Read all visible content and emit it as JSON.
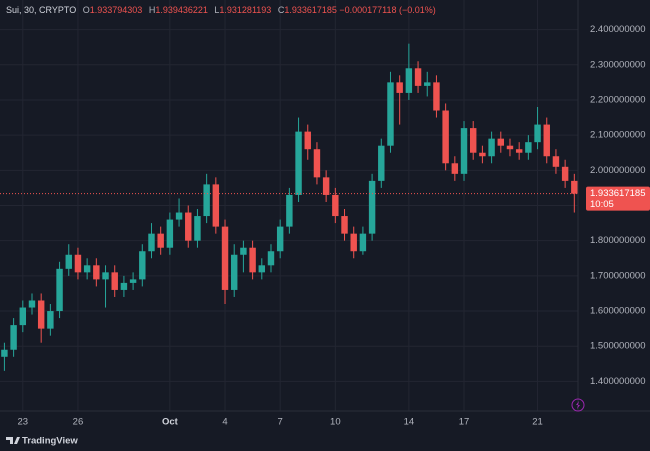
{
  "header": {
    "symbol": "Sui, 30, CRYPTO",
    "o_label": "O",
    "open": "1.933794303",
    "h_label": "H",
    "high": "1.939436221",
    "l_label": "L",
    "low": "1.931281193",
    "c_label": "C",
    "close": "1.933617185",
    "change": "−0.000177118 (−0.01%)"
  },
  "chart_data": {
    "type": "candlestick",
    "x": [
      0,
      0.5,
      1,
      1.5,
      2,
      2.5,
      3,
      3.5,
      4,
      4.5,
      5,
      5.5,
      6,
      6.5,
      7,
      7.5,
      8,
      8.5,
      9,
      9.5,
      10,
      10.5,
      11,
      11.5,
      12,
      12.5,
      13,
      13.5,
      14,
      14.5,
      15,
      15.5,
      16,
      16.5,
      17,
      17.5,
      18,
      18.5,
      19,
      19.5,
      20,
      20.5,
      21,
      21.5,
      22,
      22.5,
      23,
      23.5,
      24,
      24.5,
      25,
      25.5,
      26,
      26.5,
      27,
      27.5,
      28,
      28.5,
      29,
      29.5,
      30,
      30.5,
      31
    ],
    "open": [
      1.47,
      1.49,
      1.56,
      1.61,
      1.63,
      1.55,
      1.6,
      1.72,
      1.76,
      1.71,
      1.73,
      1.69,
      1.71,
      1.66,
      1.68,
      1.69,
      1.77,
      1.82,
      1.78,
      1.86,
      1.88,
      1.8,
      1.87,
      1.96,
      1.84,
      1.66,
      1.76,
      1.78,
      1.71,
      1.73,
      1.77,
      1.84,
      1.93,
      2.11,
      2.06,
      1.98,
      1.93,
      1.87,
      1.82,
      1.77,
      1.82,
      1.97,
      2.07,
      2.25,
      2.22,
      2.29,
      2.24,
      2.25,
      2.17,
      2.02,
      1.99,
      2.12,
      2.05,
      2.04,
      2.09,
      2.07,
      2.06,
      2.05,
      2.08,
      2.13,
      2.04,
      2.01,
      1.97
    ],
    "high": [
      1.51,
      1.58,
      1.63,
      1.65,
      1.65,
      1.62,
      1.74,
      1.79,
      1.78,
      1.75,
      1.75,
      1.73,
      1.73,
      1.7,
      1.71,
      1.79,
      1.85,
      1.84,
      1.88,
      1.92,
      1.9,
      1.89,
      1.99,
      1.98,
      1.86,
      1.79,
      1.8,
      1.8,
      1.75,
      1.79,
      1.86,
      1.95,
      2.15,
      2.13,
      2.08,
      2.0,
      1.95,
      1.89,
      1.84,
      1.84,
      1.99,
      2.09,
      2.28,
      2.27,
      2.36,
      2.31,
      2.28,
      2.27,
      2.19,
      2.04,
      2.14,
      2.14,
      2.07,
      2.11,
      2.11,
      2.09,
      2.08,
      2.1,
      2.18,
      2.15,
      2.06,
      2.03,
      1.99
    ],
    "low": [
      1.43,
      1.47,
      1.54,
      1.59,
      1.51,
      1.53,
      1.58,
      1.7,
      1.69,
      1.69,
      1.67,
      1.61,
      1.64,
      1.64,
      1.66,
      1.67,
      1.75,
      1.76,
      1.76,
      1.84,
      1.78,
      1.78,
      1.85,
      1.82,
      1.62,
      1.64,
      1.71,
      1.69,
      1.69,
      1.71,
      1.75,
      1.82,
      1.91,
      2.03,
      1.96,
      1.91,
      1.85,
      1.8,
      1.75,
      1.76,
      1.8,
      1.95,
      2.05,
      2.13,
      2.2,
      2.22,
      2.21,
      2.15,
      2.0,
      1.97,
      1.97,
      2.03,
      2.02,
      2.02,
      2.05,
      2.04,
      2.03,
      2.03,
      2.06,
      2.02,
      1.99,
      1.95,
      1.88
    ],
    "close": [
      1.49,
      1.56,
      1.61,
      1.63,
      1.55,
      1.6,
      1.72,
      1.76,
      1.71,
      1.73,
      1.69,
      1.71,
      1.66,
      1.68,
      1.69,
      1.77,
      1.82,
      1.78,
      1.86,
      1.88,
      1.8,
      1.87,
      1.96,
      1.84,
      1.66,
      1.76,
      1.78,
      1.71,
      1.73,
      1.77,
      1.84,
      1.93,
      2.11,
      2.06,
      1.98,
      1.93,
      1.87,
      1.82,
      1.77,
      1.82,
      1.97,
      2.07,
      2.25,
      2.22,
      2.29,
      2.24,
      2.25,
      2.17,
      2.02,
      1.99,
      2.12,
      2.05,
      2.04,
      2.09,
      2.07,
      2.06,
      2.05,
      2.08,
      2.13,
      2.04,
      2.01,
      1.97,
      1.933617185
    ],
    "up_color": "#26a69a",
    "down_color": "#ef5350",
    "xlim": [
      -0.24,
      31.2
    ],
    "xticks": [
      {
        "value": 1,
        "label": "23"
      },
      {
        "value": 4,
        "label": "26"
      },
      {
        "value": 9,
        "label": "Oct"
      },
      {
        "value": 12,
        "label": "4"
      },
      {
        "value": 15,
        "label": "7"
      },
      {
        "value": 18,
        "label": "10"
      },
      {
        "value": 22,
        "label": "14"
      },
      {
        "value": 25,
        "label": "17"
      },
      {
        "value": 29,
        "label": "21"
      }
    ],
    "ylim": [
      1.3159,
      2.4841
    ],
    "yticks": [
      {
        "value": 2.4,
        "label": "2.400000000"
      },
      {
        "value": 2.3,
        "label": "2.300000000"
      },
      {
        "value": 2.2,
        "label": "2.200000000"
      },
      {
        "value": 2.1,
        "label": "2.100000000"
      },
      {
        "value": 2.0,
        "label": "2.000000000"
      },
      {
        "value": 1.9,
        "label": "1.900000000"
      },
      {
        "value": 1.8,
        "label": "1.800000000"
      },
      {
        "value": 1.7,
        "label": "1.700000000"
      },
      {
        "value": 1.6,
        "label": "1.600000000"
      },
      {
        "value": 1.5,
        "label": "1.500000000"
      },
      {
        "value": 1.4,
        "label": "1.400000000"
      }
    ],
    "grid": true,
    "current_price": 1.933617185,
    "countdown": "10:05"
  },
  "footer": {
    "brand": "TradingView"
  }
}
